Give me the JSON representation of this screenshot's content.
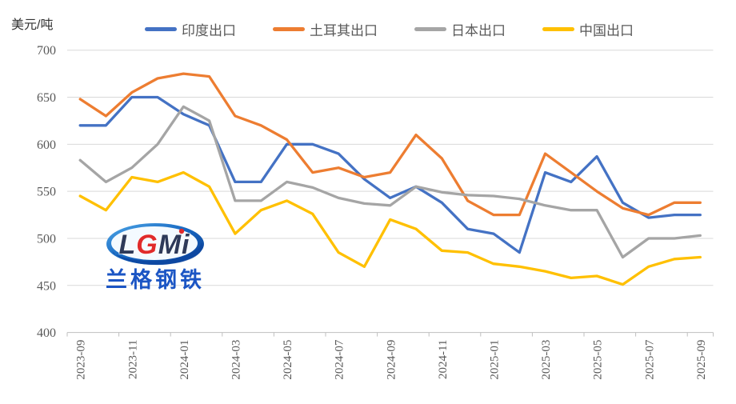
{
  "unit_label": "美元/吨",
  "colors": {
    "india": "#4472C4",
    "turkey": "#ED7D31",
    "japan": "#A5A5A5",
    "china": "#FFC000",
    "gridline": "#D9D9D9",
    "axis": "#BFBFBF",
    "tick_text": "#595959",
    "logo_blue": "#1B55C4",
    "logo_red": "#E02B2B",
    "logo_navy": "#2E3A59"
  },
  "logo": {
    "part1": "L",
    "part2": "G",
    "part3": "Mi",
    "name": "兰格钢铁"
  },
  "chart_data": {
    "type": "line",
    "title": "",
    "xlabel": "",
    "ylabel": "美元/吨",
    "ylim": [
      400,
      700
    ],
    "yticks": [
      400,
      450,
      500,
      550,
      600,
      650,
      700
    ],
    "grid": "horizontal",
    "legend_position": "top",
    "xtick_every": 2,
    "x": [
      "2023-09",
      "2023-10",
      "2023-11",
      "2023-12",
      "2024-01",
      "2024-02",
      "2024-03",
      "2024-04",
      "2024-05",
      "2024-06",
      "2024-07",
      "2024-08",
      "2024-09",
      "2024-10",
      "2024-11",
      "2024-12",
      "2025-01",
      "2025-02",
      "2025-03",
      "2025-04",
      "2025-05",
      "2025-06",
      "2025-07",
      "2025-08",
      "2025-09"
    ],
    "xtick_labels_shown": [
      "2023-09",
      "2023-11",
      "2024-01",
      "2024-03",
      "2024-05",
      "2024-07",
      "2024-09",
      "2024-11",
      "2025-01",
      "2025-03",
      "2025-05",
      "2025-07",
      "2025-09"
    ],
    "series": [
      {
        "key": "india",
        "name": "印度出口",
        "color": "#4472C4",
        "values": [
          620,
          620,
          650,
          650,
          632,
          620,
          560,
          560,
          600,
          600,
          590,
          563,
          543,
          555,
          538,
          510,
          505,
          485,
          570,
          560,
          587,
          538,
          522,
          525,
          525
        ]
      },
      {
        "key": "turkey",
        "name": "土耳其出口",
        "color": "#ED7D31",
        "values": [
          648,
          630,
          655,
          670,
          675,
          672,
          630,
          620,
          605,
          570,
          575,
          565,
          570,
          610,
          585,
          540,
          525,
          525,
          590,
          570,
          550,
          532,
          525,
          538,
          538
        ]
      },
      {
        "key": "japan",
        "name": "日本出口",
        "color": "#A5A5A5",
        "values": [
          583,
          560,
          575,
          600,
          640,
          625,
          540,
          540,
          560,
          554,
          543,
          537,
          535,
          555,
          549,
          546,
          545,
          542,
          535,
          530,
          530,
          480,
          500,
          500,
          503
        ]
      },
      {
        "key": "china",
        "name": "中国出口",
        "color": "#FFC000",
        "values": [
          545,
          530,
          565,
          560,
          570,
          555,
          505,
          530,
          540,
          526,
          485,
          470,
          520,
          510,
          487,
          485,
          473,
          470,
          465,
          458,
          460,
          451,
          470,
          478,
          480
        ]
      }
    ]
  }
}
